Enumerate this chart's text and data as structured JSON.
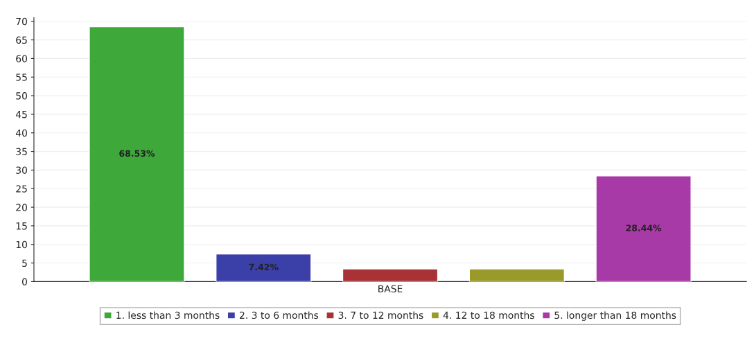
{
  "chart_data": {
    "type": "bar",
    "categories": [
      "BASE"
    ],
    "series": [
      {
        "name": "1. less than 3 months",
        "color": "#3fa83a",
        "values": [
          68.53
        ],
        "value_labels": [
          "68.53%"
        ]
      },
      {
        "name": "2. 3 to 6 months",
        "color": "#3b3fa8",
        "values": [
          7.42
        ],
        "value_labels": [
          "7.42%"
        ]
      },
      {
        "name": "3. 7 to 12 months",
        "color": "#a83236",
        "values": [
          3.4
        ],
        "value_labels": [
          null
        ]
      },
      {
        "name": "4. 12 to 18 months",
        "color": "#9a9a2a",
        "values": [
          3.4
        ],
        "value_labels": [
          null
        ]
      },
      {
        "name": "5. longer than 18 months",
        "color": "#a83aa8",
        "values": [
          28.44
        ],
        "value_labels": [
          "28.44%"
        ]
      }
    ],
    "ylim": [
      0,
      71
    ],
    "yticks": [
      0,
      5,
      10,
      15,
      20,
      25,
      30,
      35,
      40,
      45,
      50,
      55,
      60,
      65,
      70
    ],
    "grid": "y",
    "legend": "bottom"
  }
}
